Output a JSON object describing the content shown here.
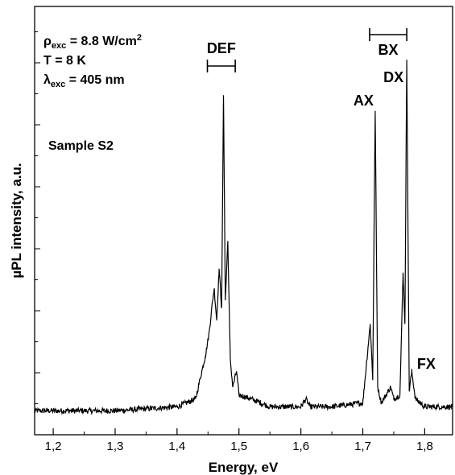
{
  "chart_data": {
    "type": "line",
    "title": "",
    "xlabel": "Energy, eV",
    "ylabel": "µPL intensity, a.u.",
    "xlim": [
      1.17,
      1.845
    ],
    "ylim": [
      0,
      1.0
    ],
    "x_ticks": [
      "1,2",
      "1,3",
      "1,4",
      "1,5",
      "1,6",
      "1,7",
      "1,8"
    ],
    "y_tick_labels_shown": false,
    "grid": false,
    "legend": "none",
    "series": [
      {
        "name": "",
        "color": "#000000",
        "x": [
          1.17,
          1.3,
          1.4,
          1.43,
          1.44,
          1.446,
          1.452,
          1.456,
          1.46,
          1.464,
          1.468,
          1.472,
          1.475,
          1.478,
          1.482,
          1.486,
          1.49,
          1.496,
          1.5,
          1.52,
          1.55,
          1.6,
          1.608,
          1.615,
          1.65,
          1.7,
          1.712,
          1.716,
          1.72,
          1.724,
          1.73,
          1.745,
          1.75,
          1.76,
          1.765,
          1.768,
          1.771,
          1.775,
          1.779,
          1.785,
          1.8,
          1.845
        ],
        "y": [
          0.02,
          0.02,
          0.03,
          0.05,
          0.12,
          0.16,
          0.22,
          0.28,
          0.33,
          0.25,
          0.38,
          0.28,
          0.82,
          0.3,
          0.45,
          0.15,
          0.08,
          0.12,
          0.06,
          0.05,
          0.03,
          0.03,
          0.05,
          0.03,
          0.03,
          0.04,
          0.24,
          0.1,
          0.78,
          0.08,
          0.04,
          0.08,
          0.05,
          0.06,
          0.37,
          0.24,
          0.91,
          0.07,
          0.12,
          0.05,
          0.03,
          0.03
        ]
      }
    ],
    "annotations": {
      "rho": {
        "base": "ρ",
        "sub": "exc",
        "rest": " = 8.8 W/cm",
        "sup": "2"
      },
      "temperature": "T = 8 K",
      "lambda": {
        "base": "λ",
        "sub": "exc",
        "rest": " = 405 nm"
      },
      "sample": "Sample S2",
      "def_label": "DEF",
      "def_range": [
        1.449,
        1.494
      ],
      "bx_label": "BX",
      "bx_range": [
        1.711,
        1.771
      ],
      "peak_labels": [
        {
          "text": "AX",
          "x": 1.72
        },
        {
          "text": "DX",
          "x": 1.771
        },
        {
          "text": "FX",
          "x": 1.785
        }
      ]
    }
  }
}
